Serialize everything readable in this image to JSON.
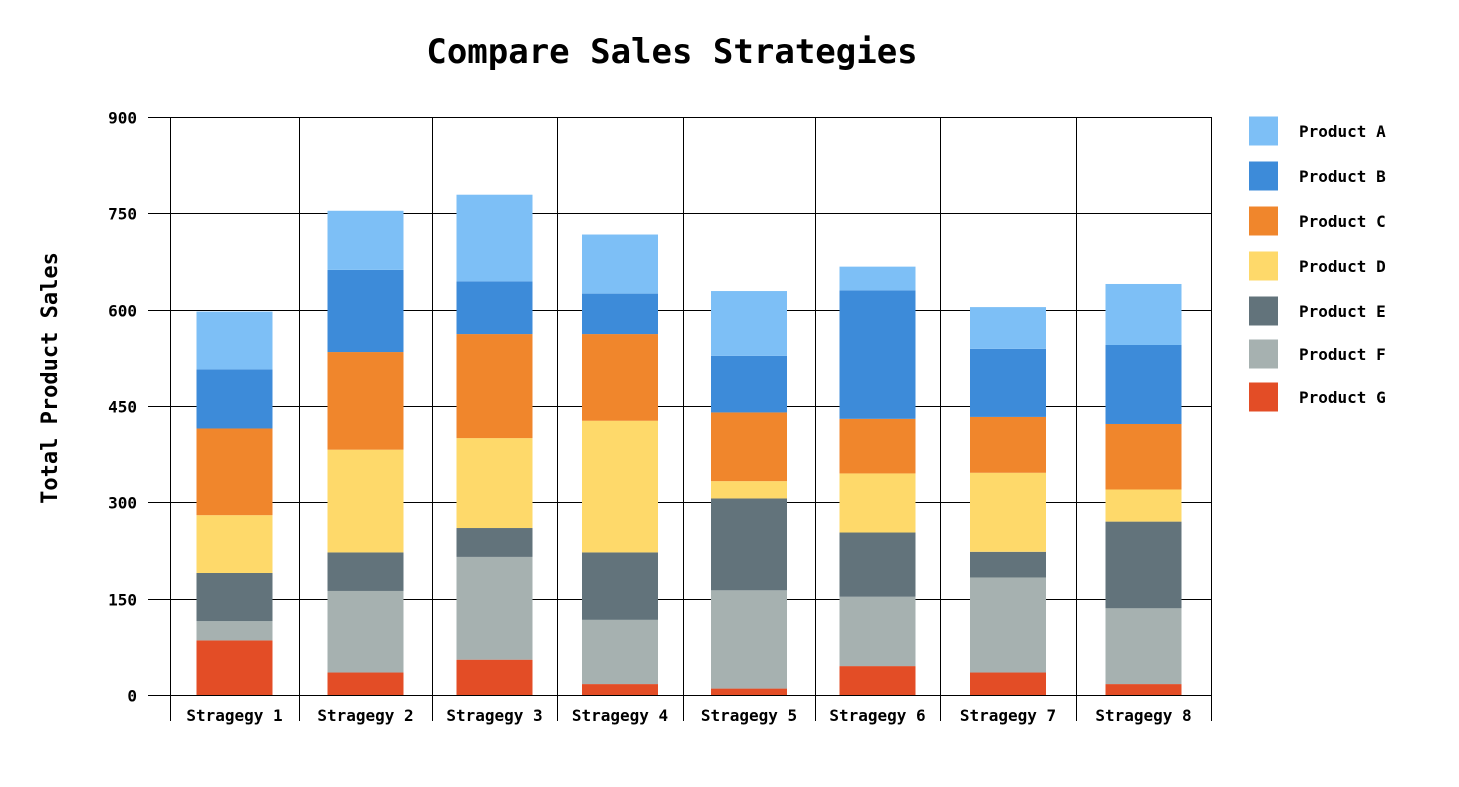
{
  "chart_data": {
    "type": "bar",
    "stacked": true,
    "title": "Compare Sales Strategies",
    "xlabel": "",
    "ylabel": "Total Product Sales",
    "ylim": [
      0,
      900
    ],
    "yticks": [
      0,
      150,
      300,
      450,
      600,
      750,
      900
    ],
    "grid": true,
    "legend_position": "right",
    "categories": [
      "Stragegy 1",
      "Stragegy 2",
      "Stragegy 3",
      "Stragegy 4",
      "Stragegy 5",
      "Stragegy 6",
      "Stragegy 7",
      "Stragegy 8"
    ],
    "series": [
      {
        "name": "Product G",
        "color": "#e34d26",
        "values": [
          85,
          35,
          55,
          17,
          10,
          45,
          35,
          17
        ]
      },
      {
        "name": "Product F",
        "color": "#a6b1b0",
        "values": [
          30,
          127,
          160,
          100,
          153,
          108,
          148,
          118
        ]
      },
      {
        "name": "Product E",
        "color": "#62737b",
        "values": [
          75,
          60,
          45,
          105,
          143,
          100,
          40,
          135
        ]
      },
      {
        "name": "Product D",
        "color": "#fed96a",
        "values": [
          90,
          160,
          140,
          205,
          27,
          92,
          123,
          50
        ]
      },
      {
        "name": "Product C",
        "color": "#f0862c",
        "values": [
          135,
          152,
          162,
          135,
          107,
          85,
          87,
          102
        ]
      },
      {
        "name": "Product B",
        "color": "#3d8bd9",
        "values": [
          92,
          128,
          82,
          63,
          88,
          200,
          106,
          123
        ]
      },
      {
        "name": "Product A",
        "color": "#7dbff6",
        "values": [
          90,
          92,
          135,
          92,
          101,
          37,
          65,
          95
        ]
      }
    ],
    "legend_order": [
      "Product A",
      "Product B",
      "Product C",
      "Product D",
      "Product E",
      "Product F",
      "Product G"
    ]
  }
}
